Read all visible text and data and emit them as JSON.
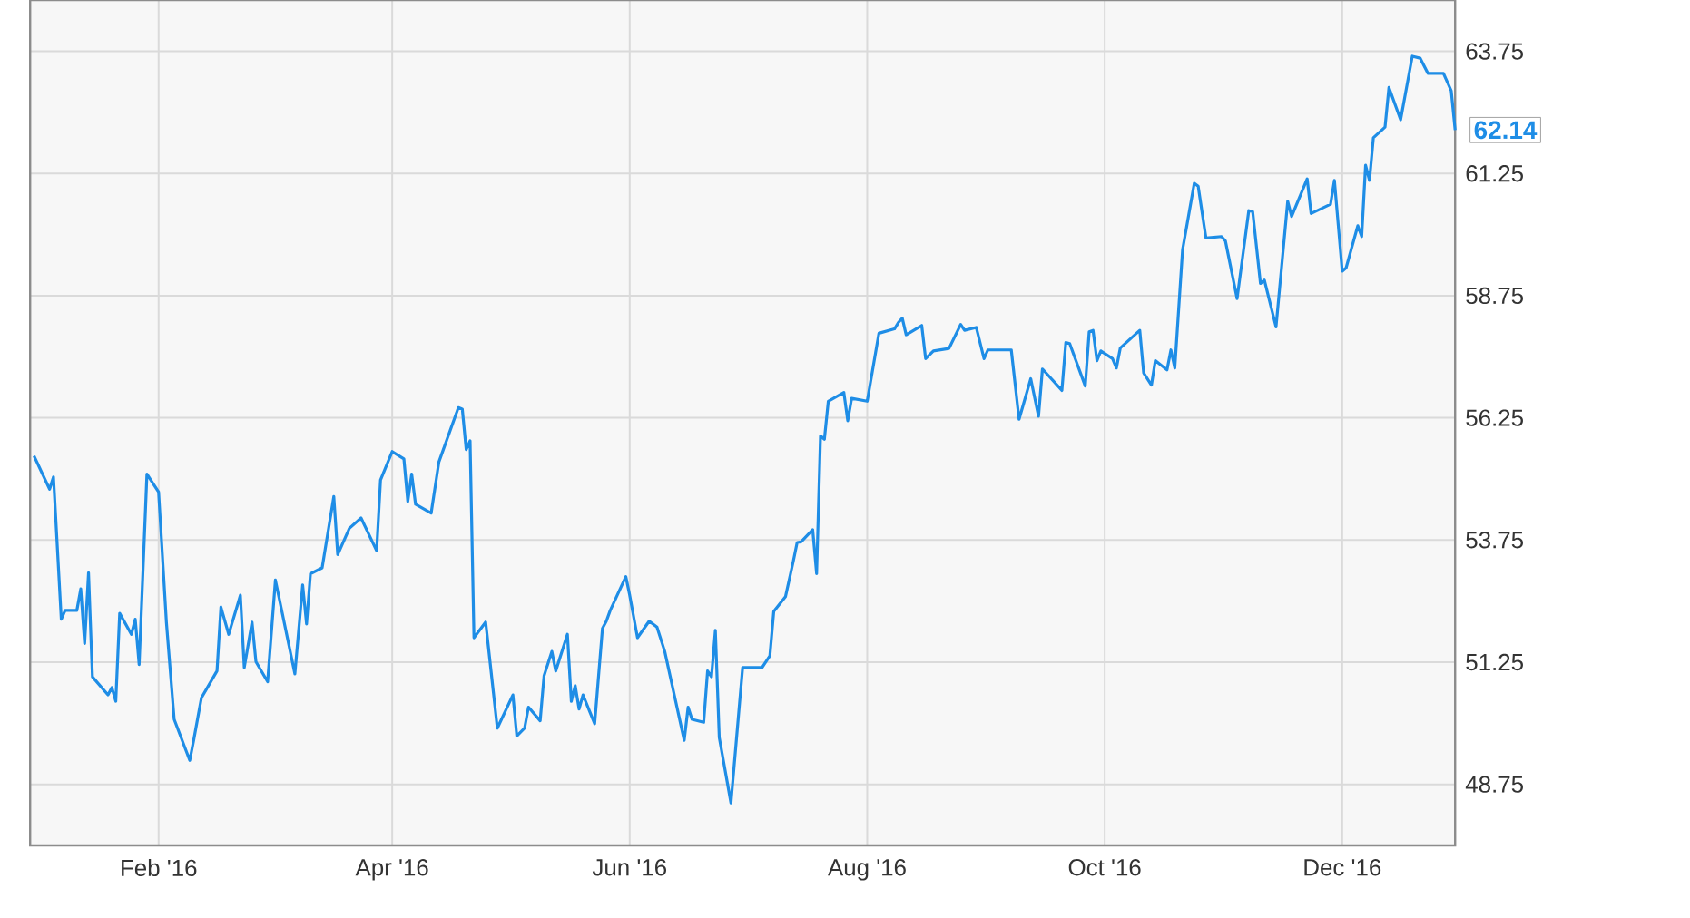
{
  "chart_data": {
    "type": "line",
    "color": "#1e8de6",
    "x": [
      "2015-12-31",
      "2016-01-04",
      "2016-01-05",
      "2016-01-07",
      "2016-01-08",
      "2016-01-11",
      "2016-01-12",
      "2016-01-13",
      "2016-01-14",
      "2016-01-15",
      "2016-01-19",
      "2016-01-20",
      "2016-01-21",
      "2016-01-22",
      "2016-01-25",
      "2016-01-26",
      "2016-01-27",
      "2016-01-29",
      "2016-02-01",
      "2016-02-03",
      "2016-02-05",
      "2016-02-09",
      "2016-02-10",
      "2016-02-12",
      "2016-02-16",
      "2016-02-17",
      "2016-02-19",
      "2016-02-22",
      "2016-02-23",
      "2016-02-25",
      "2016-02-26",
      "2016-02-29",
      "2016-03-02",
      "2016-03-07",
      "2016-03-09",
      "2016-03-10",
      "2016-03-11",
      "2016-03-14",
      "2016-03-17",
      "2016-03-18",
      "2016-03-21",
      "2016-03-24",
      "2016-03-28",
      "2016-03-29",
      "2016-04-01",
      "2016-04-04",
      "2016-04-05",
      "2016-04-06",
      "2016-04-07",
      "2016-04-11",
      "2016-04-13",
      "2016-04-18",
      "2016-04-19",
      "2016-04-20",
      "2016-04-21",
      "2016-04-22",
      "2016-04-25",
      "2016-04-28",
      "2016-05-02",
      "2016-05-03",
      "2016-05-05",
      "2016-05-06",
      "2016-05-09",
      "2016-05-10",
      "2016-05-12",
      "2016-05-13",
      "2016-05-16",
      "2016-05-17",
      "2016-05-18",
      "2016-05-19",
      "2016-05-20",
      "2016-05-23",
      "2016-05-25",
      "2016-05-26",
      "2016-05-27",
      "2016-05-31",
      "2016-06-01",
      "2016-06-03",
      "2016-06-06",
      "2016-06-08",
      "2016-06-10",
      "2016-06-15",
      "2016-06-16",
      "2016-06-17",
      "2016-06-20",
      "2016-06-21",
      "2016-06-22",
      "2016-06-23",
      "2016-06-24",
      "2016-06-27",
      "2016-06-30",
      "2016-07-05",
      "2016-07-07",
      "2016-07-08",
      "2016-07-11",
      "2016-07-13",
      "2016-07-14",
      "2016-07-15",
      "2016-07-18",
      "2016-07-19",
      "2016-07-20",
      "2016-07-21",
      "2016-07-22",
      "2016-07-26",
      "2016-07-27",
      "2016-07-28",
      "2016-08-01",
      "2016-08-04",
      "2016-08-08",
      "2016-08-09",
      "2016-08-10",
      "2016-08-11",
      "2016-08-15",
      "2016-08-16",
      "2016-08-18",
      "2016-08-22",
      "2016-08-25",
      "2016-08-26",
      "2016-08-29",
      "2016-08-31",
      "2016-09-01",
      "2016-09-07",
      "2016-09-09",
      "2016-09-12",
      "2016-09-14",
      "2016-09-15",
      "2016-09-20",
      "2016-09-21",
      "2016-09-22",
      "2016-09-26",
      "2016-09-27",
      "2016-09-28",
      "2016-09-29",
      "2016-09-30",
      "2016-10-03",
      "2016-10-04",
      "2016-10-05",
      "2016-10-10",
      "2016-10-11",
      "2016-10-13",
      "2016-10-14",
      "2016-10-17",
      "2016-10-18",
      "2016-10-19",
      "2016-10-21",
      "2016-10-24",
      "2016-10-25",
      "2016-10-27",
      "2016-10-31",
      "2016-11-01",
      "2016-11-04",
      "2016-11-07",
      "2016-11-08",
      "2016-11-10",
      "2016-11-11",
      "2016-11-14",
      "2016-11-17",
      "2016-11-18",
      "2016-11-22",
      "2016-11-23",
      "2016-11-28",
      "2016-11-29",
      "2016-12-01",
      "2016-12-02",
      "2016-12-05",
      "2016-12-06",
      "2016-12-07",
      "2016-12-08",
      "2016-12-09",
      "2016-12-12",
      "2016-12-13",
      "2016-12-16",
      "2016-12-19",
      "2016-12-21",
      "2016-12-23",
      "2016-12-27",
      "2016-12-29",
      "2016-12-30"
    ],
    "values": [
      55.47,
      54.79,
      55.04,
      52.13,
      52.31,
      52.31,
      52.75,
      51.63,
      53.08,
      50.95,
      50.58,
      50.73,
      50.45,
      52.25,
      51.82,
      52.13,
      51.2,
      55.1,
      54.73,
      52.07,
      50.08,
      49.24,
      49.65,
      50.52,
      51.07,
      52.38,
      51.82,
      52.62,
      51.14,
      52.07,
      51.26,
      50.85,
      52.93,
      51.01,
      52.83,
      52.03,
      53.06,
      53.18,
      54.64,
      53.45,
      53.99,
      54.2,
      53.53,
      54.98,
      55.56,
      55.41,
      54.54,
      55.1,
      54.48,
      54.3,
      55.35,
      56.46,
      56.43,
      55.6,
      55.78,
      51.75,
      52.07,
      49.9,
      50.58,
      49.74,
      49.9,
      50.33,
      50.05,
      50.97,
      51.47,
      51.07,
      51.82,
      50.45,
      50.77,
      50.29,
      50.58,
      49.99,
      51.94,
      52.09,
      52.31,
      53.0,
      52.62,
      51.75,
      52.09,
      51.97,
      51.47,
      49.65,
      50.33,
      50.08,
      50.02,
      51.07,
      50.95,
      51.9,
      49.71,
      48.37,
      51.14,
      51.14,
      51.38,
      52.29,
      52.59,
      53.31,
      53.7,
      53.71,
      53.96,
      53.06,
      55.88,
      55.81,
      56.59,
      56.77,
      56.19,
      56.65,
      56.59,
      57.98,
      58.07,
      58.2,
      58.29,
      57.95,
      58.14,
      57.46,
      57.62,
      57.67,
      58.16,
      58.04,
      58.1,
      57.46,
      57.64,
      57.64,
      56.22,
      57.05,
      56.28,
      57.25,
      56.81,
      57.79,
      57.77,
      56.9,
      58.01,
      58.04,
      57.42,
      57.62,
      57.46,
      57.27,
      57.68,
      58.04,
      57.17,
      56.92,
      57.42,
      57.23,
      57.64,
      57.27,
      59.69,
      61.05,
      60.99,
      59.93,
      59.96,
      59.87,
      58.69,
      60.49,
      60.47,
      59.0,
      59.07,
      58.11,
      60.68,
      60.37,
      61.14,
      60.43,
      60.62,
      61.11,
      59.25,
      59.32,
      60.18,
      59.96,
      61.42,
      61.11,
      61.98,
      62.2,
      63.01,
      62.35,
      63.65,
      63.61,
      63.3,
      63.3,
      62.94,
      62.14
    ],
    "xlim": [
      "2015-12-30",
      "2016-12-30"
    ],
    "ylim": [
      47.5,
      64.8
    ],
    "xticks": [
      {
        "value": "2016-02-01",
        "label": "Feb '16"
      },
      {
        "value": "2016-04-01",
        "label": "Apr '16"
      },
      {
        "value": "2016-06-01",
        "label": "Jun '16"
      },
      {
        "value": "2016-08-01",
        "label": "Aug '16"
      },
      {
        "value": "2016-10-01",
        "label": "Oct '16"
      },
      {
        "value": "2016-12-01",
        "label": "Dec '16"
      }
    ],
    "yticks": [
      48.75,
      51.25,
      53.75,
      56.25,
      58.75,
      61.25,
      63.75
    ],
    "grid": true,
    "annotations": [
      {
        "text": "62.14",
        "x": "2016-12-30",
        "y": 62.14
      }
    ]
  }
}
